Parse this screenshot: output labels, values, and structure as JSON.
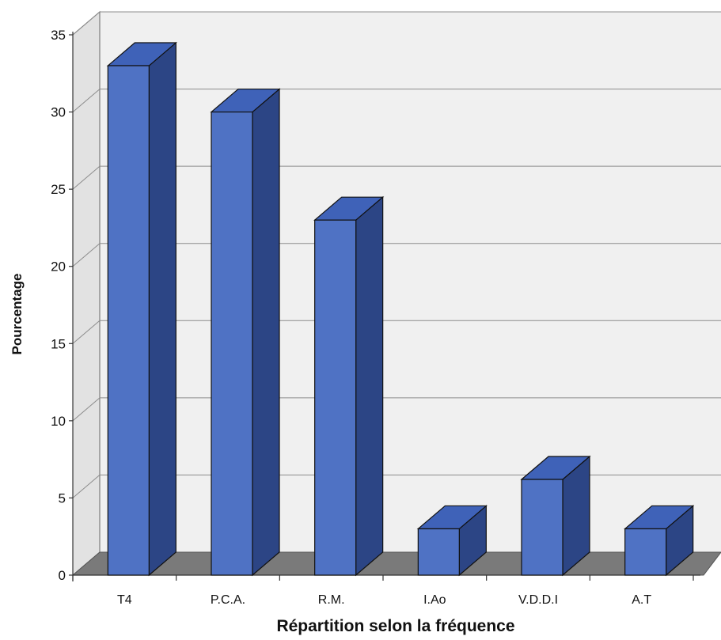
{
  "chart_data": {
    "type": "bar",
    "categories": [
      "T4",
      "P.C.A.",
      "R.M.",
      "I.Ao",
      "V.D.D.I",
      "A.T"
    ],
    "values": [
      33,
      30,
      23,
      3,
      6.2,
      3
    ],
    "xlabel": "Répartition selon la fréquence",
    "ylabel": "Pourcentage",
    "ylim": [
      0,
      35
    ],
    "yticks": [
      "0",
      "5",
      "10",
      "15",
      "20",
      "25",
      "30",
      "35"
    ],
    "grid": true,
    "three_d": true,
    "colors": {
      "bar_front": "#4f72c4",
      "bar_side": "#2c4585",
      "bar_top": "#3f62b8",
      "wall": "#f0f0f0",
      "floor": "#7a7a7a",
      "gridline": "#8c8c8c"
    }
  }
}
